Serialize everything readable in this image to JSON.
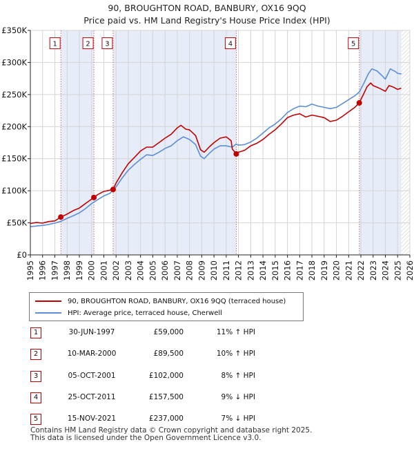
{
  "chart_data": {
    "type": "line",
    "title": "90, BROUGHTON ROAD, BANBURY, OX16 9QQ",
    "subtitle": "Price paid vs. HM Land Registry's House Price Index (HPI)",
    "xlim": [
      1995,
      2026
    ],
    "ylim": [
      0,
      350000
    ],
    "x_ticks": [
      "1995",
      "1996",
      "1997",
      "1998",
      "1999",
      "2000",
      "2001",
      "2002",
      "2003",
      "2004",
      "2005",
      "2006",
      "2007",
      "2008",
      "2009",
      "2010",
      "2011",
      "2012",
      "2013",
      "2014",
      "2015",
      "2016",
      "2017",
      "2018",
      "2019",
      "2020",
      "2021",
      "2022",
      "2023",
      "2024",
      "2025",
      "2026"
    ],
    "y_ticks": [
      {
        "value": 0,
        "label": "£0"
      },
      {
        "value": 50000,
        "label": "£50K"
      },
      {
        "value": 100000,
        "label": "£100K"
      },
      {
        "value": 150000,
        "label": "£150K"
      },
      {
        "value": 200000,
        "label": "£200K"
      },
      {
        "value": 250000,
        "label": "£250K"
      },
      {
        "value": 300000,
        "label": "£300K"
      },
      {
        "value": 350000,
        "label": "£350K"
      }
    ],
    "series": [
      {
        "name": "90, BROUGHTON ROAD, BANBURY, OX16 9QQ (terraced house)",
        "color": "#c00000",
        "points": [
          [
            1995.0,
            49000
          ],
          [
            1995.5,
            50500
          ],
          [
            1996.0,
            49500
          ],
          [
            1996.5,
            52000
          ],
          [
            1997.0,
            53000
          ],
          [
            1997.5,
            59000
          ],
          [
            1998.0,
            63500
          ],
          [
            1998.5,
            69000
          ],
          [
            1999.0,
            73000
          ],
          [
            1999.5,
            80000
          ],
          [
            2000.19,
            89500
          ],
          [
            2000.5,
            94000
          ],
          [
            2001.0,
            99000
          ],
          [
            2001.76,
            102000
          ],
          [
            2002.0,
            112000
          ],
          [
            2002.5,
            128000
          ],
          [
            2003.0,
            142000
          ],
          [
            2003.5,
            152000
          ],
          [
            2004.0,
            162000
          ],
          [
            2004.5,
            168000
          ],
          [
            2005.0,
            168000
          ],
          [
            2005.5,
            175000
          ],
          [
            2006.0,
            182000
          ],
          [
            2006.5,
            188000
          ],
          [
            2007.0,
            198000
          ],
          [
            2007.3,
            202000
          ],
          [
            2007.7,
            196000
          ],
          [
            2008.0,
            195000
          ],
          [
            2008.5,
            186000
          ],
          [
            2008.9,
            164000
          ],
          [
            2009.2,
            160000
          ],
          [
            2009.6,
            168000
          ],
          [
            2010.0,
            175000
          ],
          [
            2010.5,
            182000
          ],
          [
            2011.0,
            184000
          ],
          [
            2011.4,
            178000
          ],
          [
            2011.5,
            165000
          ],
          [
            2011.82,
            157500
          ],
          [
            2012.0,
            160000
          ],
          [
            2012.5,
            163000
          ],
          [
            2013.0,
            170000
          ],
          [
            2013.5,
            174000
          ],
          [
            2014.0,
            180000
          ],
          [
            2014.5,
            188000
          ],
          [
            2015.0,
            195000
          ],
          [
            2015.5,
            204000
          ],
          [
            2016.0,
            214000
          ],
          [
            2016.5,
            218000
          ],
          [
            2017.0,
            220000
          ],
          [
            2017.5,
            215000
          ],
          [
            2018.0,
            218000
          ],
          [
            2018.5,
            216000
          ],
          [
            2019.0,
            214000
          ],
          [
            2019.5,
            208000
          ],
          [
            2020.0,
            210000
          ],
          [
            2020.5,
            216000
          ],
          [
            2021.0,
            223000
          ],
          [
            2021.5,
            230000
          ],
          [
            2021.87,
            237000
          ],
          [
            2022.2,
            250000
          ],
          [
            2022.5,
            262000
          ],
          [
            2022.8,
            268000
          ],
          [
            2023.0,
            264000
          ],
          [
            2023.5,
            260000
          ],
          [
            2024.0,
            255000
          ],
          [
            2024.3,
            264000
          ],
          [
            2024.6,
            262000
          ],
          [
            2025.0,
            258000
          ],
          [
            2025.3,
            260000
          ]
        ]
      },
      {
        "name": "HPI: Average price, terraced house, Cherwell",
        "color": "#5b8ed6",
        "points": [
          [
            1995.0,
            44000
          ],
          [
            1995.5,
            45000
          ],
          [
            1996.0,
            46000
          ],
          [
            1996.5,
            47500
          ],
          [
            1997.0,
            49500
          ],
          [
            1997.5,
            52500
          ],
          [
            1998.0,
            57000
          ],
          [
            1998.5,
            61000
          ],
          [
            1999.0,
            65500
          ],
          [
            1999.5,
            72000
          ],
          [
            2000.0,
            80000
          ],
          [
            2000.5,
            86000
          ],
          [
            2001.0,
            92000
          ],
          [
            2001.5,
            96000
          ],
          [
            2002.0,
            106000
          ],
          [
            2002.5,
            120000
          ],
          [
            2003.0,
            132000
          ],
          [
            2003.5,
            141000
          ],
          [
            2004.0,
            149000
          ],
          [
            2004.5,
            156000
          ],
          [
            2005.0,
            155000
          ],
          [
            2005.5,
            160000
          ],
          [
            2006.0,
            166000
          ],
          [
            2006.5,
            170000
          ],
          [
            2007.0,
            178000
          ],
          [
            2007.5,
            184000
          ],
          [
            2008.0,
            180000
          ],
          [
            2008.5,
            172000
          ],
          [
            2008.9,
            154000
          ],
          [
            2009.2,
            150000
          ],
          [
            2009.6,
            158000
          ],
          [
            2010.0,
            165000
          ],
          [
            2010.5,
            170000
          ],
          [
            2011.0,
            170000
          ],
          [
            2011.5,
            168000
          ],
          [
            2011.82,
            173000
          ],
          [
            2012.0,
            171000
          ],
          [
            2012.5,
            172000
          ],
          [
            2013.0,
            176000
          ],
          [
            2013.5,
            182000
          ],
          [
            2014.0,
            190000
          ],
          [
            2014.5,
            198000
          ],
          [
            2015.0,
            204000
          ],
          [
            2015.5,
            212000
          ],
          [
            2016.0,
            222000
          ],
          [
            2016.5,
            228000
          ],
          [
            2017.0,
            232000
          ],
          [
            2017.5,
            231000
          ],
          [
            2018.0,
            235000
          ],
          [
            2018.5,
            232000
          ],
          [
            2019.0,
            230000
          ],
          [
            2019.5,
            228000
          ],
          [
            2020.0,
            230000
          ],
          [
            2020.5,
            236000
          ],
          [
            2021.0,
            242000
          ],
          [
            2021.5,
            248000
          ],
          [
            2021.87,
            254000
          ],
          [
            2022.2,
            266000
          ],
          [
            2022.6,
            282000
          ],
          [
            2022.9,
            290000
          ],
          [
            2023.3,
            287000
          ],
          [
            2023.7,
            280000
          ],
          [
            2024.0,
            274000
          ],
          [
            2024.4,
            290000
          ],
          [
            2024.8,
            286000
          ],
          [
            2025.0,
            283000
          ],
          [
            2025.3,
            282000
          ]
        ]
      }
    ],
    "sales": [
      {
        "num": "1",
        "date": "30-JUN-1997",
        "price": "£59,000",
        "hpi": "11% ↑ HPI",
        "x": 1997.49,
        "y": 59000
      },
      {
        "num": "2",
        "date": "10-MAR-2000",
        "price": "£89,500",
        "hpi": "10% ↑ HPI",
        "x": 2000.19,
        "y": 89500
      },
      {
        "num": "3",
        "date": "05-OCT-2001",
        "price": "£102,000",
        "hpi": "8% ↑ HPI",
        "x": 2001.76,
        "y": 102000
      },
      {
        "num": "4",
        "date": "25-OCT-2011",
        "price": "£157,500",
        "hpi": "9% ↓ HPI",
        "x": 2011.82,
        "y": 157500
      },
      {
        "num": "5",
        "date": "15-NOV-2021",
        "price": "£237,000",
        "hpi": "7% ↓ HPI",
        "x": 2021.87,
        "y": 237000
      }
    ],
    "shaded_periods": [
      [
        1997.49,
        2000.19
      ],
      [
        2001.76,
        2011.82
      ],
      [
        2021.87,
        2025.3
      ]
    ],
    "hatched_from": 2025.3,
    "label_value": 330000
  },
  "legend": {
    "property": "90, BROUGHTON ROAD, BANBURY, OX16 9QQ (terraced house)",
    "hpi": "HPI: Average price, terraced house, Cherwell"
  },
  "sales_rows": [
    {
      "num": "1",
      "date": "30-JUN-1997",
      "price": "£59,000",
      "hpi": "11% ↑ HPI"
    },
    {
      "num": "2",
      "date": "10-MAR-2000",
      "price": "£89,500",
      "hpi": "10% ↑ HPI"
    },
    {
      "num": "3",
      "date": "05-OCT-2001",
      "price": "£102,000",
      "hpi": "8% ↑ HPI"
    },
    {
      "num": "4",
      "date": "25-OCT-2011",
      "price": "£157,500",
      "hpi": "9% ↓ HPI"
    },
    {
      "num": "5",
      "date": "15-NOV-2021",
      "price": "£237,000",
      "hpi": "7% ↓ HPI"
    }
  ],
  "footer": {
    "line1": "Contains HM Land Registry data © Crown copyright and database right 2025.",
    "line2": "This data is licensed under the Open Government Licence v3.0."
  },
  "colors": {
    "property": "#c00000",
    "hpi": "#5b8ed6",
    "band": "#e6ecf8",
    "grid": "#d4d4d4",
    "sale_line": "#d46a6a"
  }
}
